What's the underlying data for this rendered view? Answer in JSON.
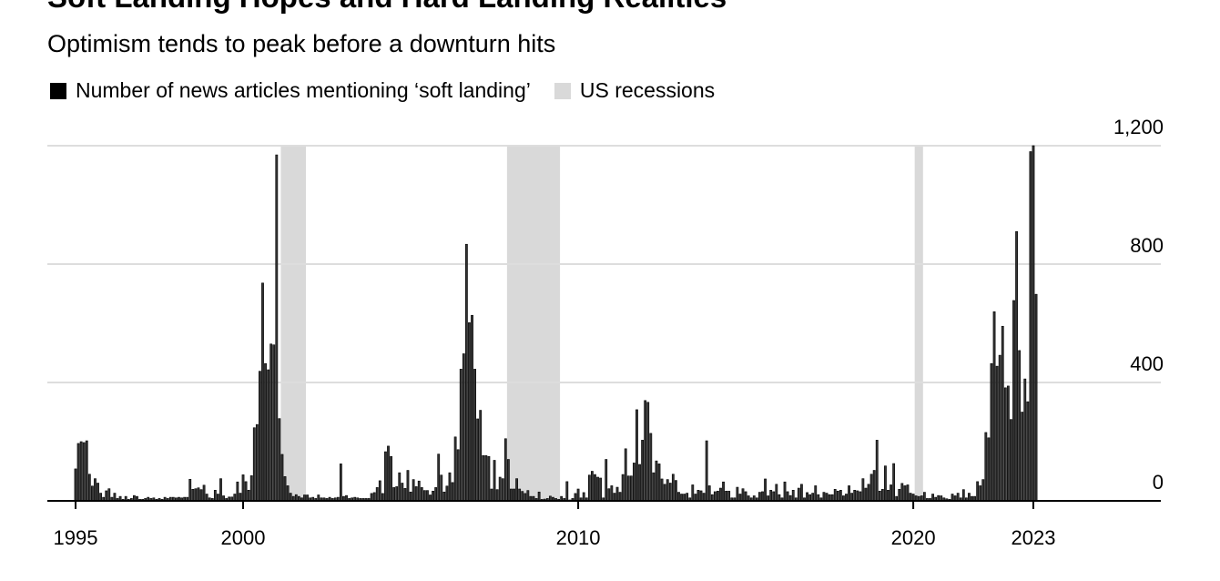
{
  "title": "Soft Landing Hopes and Hard Landing Realities",
  "subtitle": "Optimism tends to peak before a downturn hits",
  "legend": [
    {
      "label": "Number of news articles mentioning ‘soft landing’",
      "color": "#000000"
    },
    {
      "label": "US recessions",
      "color": "#d9d9d9"
    }
  ],
  "chart_data": {
    "type": "bar",
    "title": "Soft Landing Hopes and Hard Landing Realities",
    "subtitle": "Optimism tends to peak before a downturn hits",
    "frequency": "monthly",
    "x_start": "1995-01",
    "series": [
      {
        "name": "Number of news articles mentioning ‘soft landing’",
        "color": "#000000",
        "values": [
          108,
          194,
          200,
          197,
          203,
          90,
          50,
          75,
          60,
          26,
          12,
          34,
          41,
          12,
          26,
          8,
          15,
          5,
          15,
          5,
          8,
          18,
          15,
          5,
          5,
          8,
          12,
          8,
          10,
          5,
          8,
          5,
          12,
          8,
          12,
          12,
          10,
          12,
          10,
          12,
          12,
          73,
          39,
          41,
          44,
          38,
          53,
          23,
          10,
          8,
          36,
          23,
          75,
          17,
          8,
          13,
          13,
          23,
          64,
          26,
          88,
          65,
          36,
          85,
          247,
          258,
          438,
          736,
          464,
          443,
          530,
          527,
          1169,
          278,
          157,
          82,
          51,
          26,
          15,
          21,
          15,
          10,
          20,
          20,
          10,
          12,
          8,
          20,
          10,
          10,
          8,
          12,
          8,
          10,
          12,
          125,
          15,
          18,
          8,
          10,
          12,
          10,
          8,
          8,
          8,
          8,
          25,
          28,
          45,
          68,
          25,
          166,
          185,
          150,
          45,
          48,
          95,
          60,
          42,
          103,
          30,
          72,
          48,
          67,
          45,
          35,
          35,
          20,
          33,
          45,
          158,
          87,
          30,
          50,
          95,
          62,
          216,
          173,
          445,
          497,
          867,
          602,
          627,
          445,
          277,
          306,
          153,
          153,
          150,
          40,
          137,
          38,
          80,
          75,
          210,
          140,
          40,
          40,
          75,
          40,
          32,
          25,
          35,
          15,
          15,
          8,
          30,
          5,
          6,
          8,
          16,
          12,
          8,
          5,
          15,
          8,
          65,
          3,
          8,
          25,
          40,
          10,
          28,
          10,
          87,
          100,
          89,
          80,
          77,
          10,
          140,
          41,
          51,
          26,
          46,
          29,
          89,
          176,
          84,
          84,
          128,
          308,
          123,
          205,
          339,
          333,
          228,
          95,
          135,
          125,
          74,
          56,
          72,
          60,
          90,
          69,
          29,
          23,
          23,
          26,
          10,
          54,
          23,
          36,
          34,
          26,
          203,
          51,
          21,
          31,
          33,
          43,
          64,
          33,
          33,
          10,
          10,
          46,
          23,
          41,
          31,
          17,
          10,
          17,
          10,
          29,
          31,
          74,
          17,
          36,
          31,
          56,
          21,
          10,
          64,
          31,
          18,
          36,
          10,
          43,
          56,
          10,
          28,
          21,
          26,
          51,
          21,
          10,
          29,
          26,
          21,
          21,
          39,
          33,
          36,
          17,
          23,
          51,
          26,
          36,
          34,
          31,
          75,
          43,
          56,
          90,
          103,
          205,
          33,
          39,
          118,
          36,
          54,
          126,
          15,
          39,
          59,
          51,
          54,
          26,
          23,
          17,
          15,
          17,
          29,
          8,
          8,
          23,
          12,
          18,
          17,
          10,
          7,
          5,
          23,
          17,
          26,
          10,
          38,
          10,
          26,
          15,
          15,
          65,
          51,
          72,
          231,
          213,
          464,
          639,
          455,
          492,
          590,
          382,
          388,
          275,
          677,
          910,
          508,
          300,
          412,
          335,
          1180,
          1200,
          698
        ]
      }
    ],
    "recessions": [
      {
        "start": "2001-03",
        "end": "2001-11"
      },
      {
        "start": "2007-12",
        "end": "2009-06"
      },
      {
        "start": "2020-02",
        "end": "2020-04"
      }
    ],
    "recession_color": "#d9d9d9",
    "ylim": [
      0,
      1200
    ],
    "yticks": [
      {
        "value": 0,
        "label": "0"
      },
      {
        "value": 400,
        "label": "400"
      },
      {
        "value": 800,
        "label": "800"
      },
      {
        "value": 1200,
        "label": "1,200"
      }
    ],
    "xticks": [
      {
        "at": "1995-01",
        "label": "1995"
      },
      {
        "at": "2000-01",
        "label": "2000"
      },
      {
        "at": "2010-01",
        "label": "2010"
      },
      {
        "at": "2020-01",
        "label": "2020"
      },
      {
        "at": "2023-08",
        "label": "2023"
      }
    ],
    "grid": true,
    "legend_position": "top-left",
    "xlabel": "",
    "ylabel": ""
  }
}
